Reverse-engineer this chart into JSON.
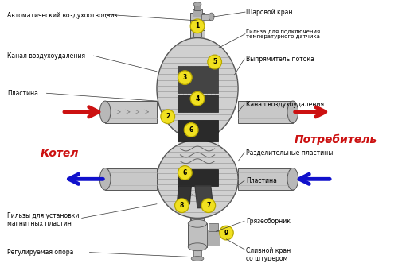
{
  "bg_color": "#ffffff",
  "fig_width": 5.0,
  "fig_height": 3.36,
  "labels": {
    "avto": "Автоматический воздухоотводчик",
    "sharovoy": "Шаровой кран",
    "gilza_temp": "Гильза для подключения\nтемпературного датчика",
    "kanal_left": "Канал воздухоудаления",
    "vypryamitel": "Выпрямитель потока",
    "plastina_left": "Пластина",
    "kanal_right": "Канал воздухоудаления",
    "kotel": "Котел",
    "potrebitel": "Потребитель",
    "razd_plastiny": "Разделительные пластины",
    "plastina_right": "Пластина",
    "gilzy_magn": "Гильзы для установки\nмагнитных пластин",
    "gryazesbornik": "Грязесборник",
    "reg_opora": "Регулируемая опора",
    "slivnoy": "Сливной кран\nсо штуцером"
  },
  "circle_color": "#f0e020",
  "circle_edge": "#b8a800",
  "red_color": "#cc1111",
  "blue_color": "#1111cc",
  "label_fontsize": 5.5,
  "kotel_fontsize": 10,
  "potrebitel_fontsize": 10
}
